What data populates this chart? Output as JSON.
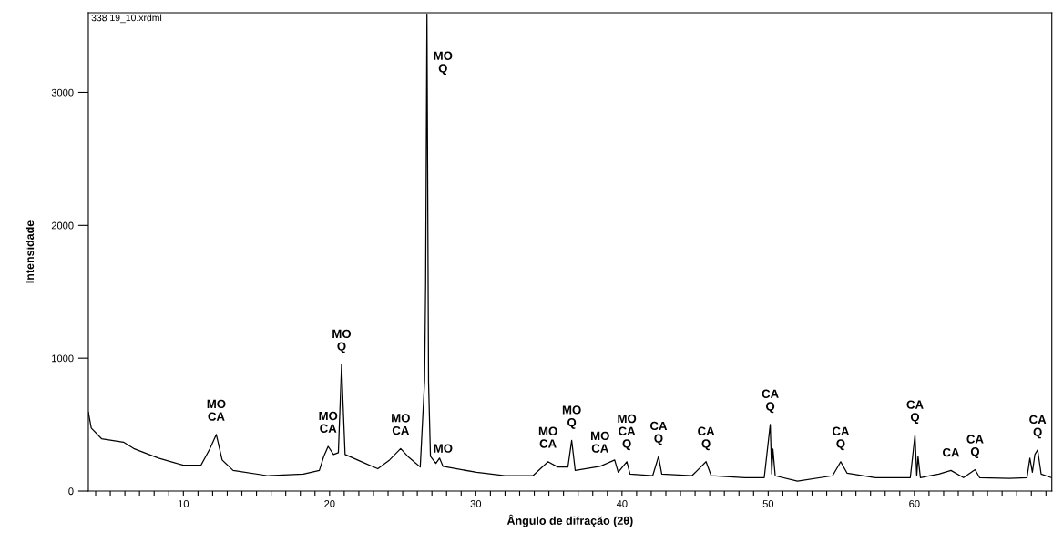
{
  "chart_data": {
    "type": "line",
    "xlabel": "Ângulo de difração (2θ)",
    "ylabel": "Intensidade",
    "xlim": [
      3.5,
      69.4
    ],
    "ylim": [
      0,
      3600
    ],
    "xticks": [
      {
        "value": 4,
        "label": null
      },
      {
        "value": 5,
        "label": null
      },
      {
        "value": 6,
        "label": null
      },
      {
        "value": 7,
        "label": null
      },
      {
        "value": 8,
        "label": null
      },
      {
        "value": 9,
        "label": null
      },
      10,
      {
        "value": 11,
        "label": null
      },
      {
        "value": 12,
        "label": null
      },
      {
        "value": 13,
        "label": null
      },
      {
        "value": 14,
        "label": null
      },
      {
        "value": 15,
        "label": null
      },
      {
        "value": 16,
        "label": null
      },
      {
        "value": 17,
        "label": null
      },
      {
        "value": 18,
        "label": null
      },
      {
        "value": 19,
        "label": null
      },
      20,
      {
        "value": 21,
        "label": null
      },
      {
        "value": 22,
        "label": null
      },
      {
        "value": 23,
        "label": null
      },
      {
        "value": 24,
        "label": null
      },
      {
        "value": 25,
        "label": null
      },
      {
        "value": 26,
        "label": null
      },
      {
        "value": 27,
        "label": null
      },
      {
        "value": 28,
        "label": null
      },
      {
        "value": 29,
        "label": null
      },
      30,
      {
        "value": 31,
        "label": null
      },
      {
        "value": 32,
        "label": null
      },
      {
        "value": 33,
        "label": null
      },
      {
        "value": 34,
        "label": null
      },
      {
        "value": 35,
        "label": null
      },
      {
        "value": 36,
        "label": null
      },
      {
        "value": 37,
        "label": null
      },
      {
        "value": 38,
        "label": null
      },
      {
        "value": 39,
        "label": null
      },
      40,
      {
        "value": 41,
        "label": null
      },
      {
        "value": 42,
        "label": null
      },
      {
        "value": 43,
        "label": null
      },
      {
        "value": 44,
        "label": null
      },
      {
        "value": 45,
        "label": null
      },
      {
        "value": 46,
        "label": null
      },
      {
        "value": 47,
        "label": null
      },
      {
        "value": 48,
        "label": null
      },
      {
        "value": 49,
        "label": null
      },
      50,
      {
        "value": 51,
        "label": null
      },
      {
        "value": 52,
        "label": null
      },
      {
        "value": 53,
        "label": null
      },
      {
        "value": 54,
        "label": null
      },
      {
        "value": 55,
        "label": null
      },
      {
        "value": 56,
        "label": null
      },
      {
        "value": 57,
        "label": null
      },
      {
        "value": 58,
        "label": null
      },
      {
        "value": 59,
        "label": null
      },
      60,
      {
        "value": 61,
        "label": null
      },
      {
        "value": 62,
        "label": null
      },
      {
        "value": 63,
        "label": null
      },
      {
        "value": 64,
        "label": null
      },
      {
        "value": 65,
        "label": null
      },
      {
        "value": 66,
        "label": null
      },
      {
        "value": 67,
        "label": null
      },
      {
        "value": 68,
        "label": null
      },
      {
        "value": 69,
        "label": null
      }
    ],
    "yticks": [
      0,
      1000,
      2000,
      3000
    ],
    "grid": false,
    "marker": "none",
    "line_style": "solid",
    "series": [
      {
        "color": "#000000",
        "x": [
          3.5,
          3.7,
          4.4,
          5.9,
          6.6,
          8.3,
          10.0,
          11.2,
          11.8,
          12.25,
          12.65,
          13.4,
          15.8,
          18.2,
          19.3,
          19.6,
          19.9,
          20.27,
          20.6,
          20.82,
          20.91,
          21.06,
          22.3,
          23.3,
          24.1,
          24.86,
          25.35,
          26.2,
          26.5,
          26.57,
          26.66,
          26.77,
          26.9,
          27.27,
          27.52,
          27.76,
          30.05,
          31.98,
          33.9,
          34.94,
          35.6,
          36.3,
          36.56,
          36.8,
          38.5,
          39.5,
          39.74,
          40.33,
          40.55,
          42.1,
          42.5,
          42.72,
          44.78,
          45.75,
          46.1,
          48.4,
          49.73,
          50.14,
          50.24,
          50.32,
          50.48,
          52.0,
          54.4,
          54.96,
          55.4,
          57.33,
          59.72,
          60.04,
          60.16,
          60.25,
          60.41,
          61.67,
          62.5,
          63.36,
          64.15,
          64.46,
          66.5,
          67.7,
          67.9,
          68.07,
          68.24,
          68.43,
          68.67,
          69.37
        ],
        "values": [
          594,
          474,
          394,
          368,
          320,
          248,
          194,
          194,
          316,
          426,
          234,
          155,
          115,
          128,
          155,
          261,
          336,
          275,
          289,
          954,
          687,
          275,
          215,
          168,
          234,
          320,
          261,
          181,
          834,
          1567,
          3591,
          820,
          261,
          208,
          248,
          186,
          141,
          115,
          115,
          221,
          181,
          181,
          381,
          155,
          186,
          234,
          141,
          221,
          128,
          115,
          261,
          128,
          115,
          221,
          115,
          101,
          101,
          502,
          128,
          316,
          115,
          75,
          115,
          221,
          134,
          101,
          101,
          421,
          115,
          261,
          101,
          128,
          155,
          101,
          161,
          101,
          96,
          101,
          248,
          141,
          275,
          309,
          128,
          101
        ]
      }
    ],
    "annotations": [
      "338 19_10.xrdml",
      {
        "text": "MO\nCA",
        "x": 12.25,
        "y": 426
      },
      {
        "text": "MO\nCA",
        "x": 19.9,
        "y": 336
      },
      {
        "text": "MO\nQ",
        "x": 20.82,
        "y": 954
      },
      {
        "text": "MO\nCA",
        "x": 24.86,
        "y": 320
      },
      {
        "text": "MO\nQ",
        "x": 26.66,
        "y": 3221
      },
      {
        "text": "MO",
        "x": 27.76,
        "y": 186
      },
      {
        "text": "MO\nCA",
        "x": 34.94,
        "y": 221
      },
      {
        "text": "MO\nQ",
        "x": 36.56,
        "y": 381
      },
      {
        "text": "MO\nCA",
        "x": 38.5,
        "y": 186
      },
      {
        "text": "MO\nCA\nQ",
        "x": 40.33,
        "y": 221
      },
      {
        "text": "CA\nQ",
        "x": 42.5,
        "y": 261
      },
      {
        "text": "CA\nQ",
        "x": 45.75,
        "y": 221
      },
      {
        "text": "CA\nQ",
        "x": 50.14,
        "y": 502
      },
      {
        "text": "CA\nQ",
        "x": 54.96,
        "y": 221
      },
      {
        "text": "CA\nQ",
        "x": 60.04,
        "y": 421
      },
      {
        "text": "CA",
        "x": 62.5,
        "y": 155
      },
      {
        "text": "CA\nQ",
        "x": 64.15,
        "y": 161
      },
      {
        "text": "CA\nQ",
        "x": 68.43,
        "y": 309
      }
    ]
  }
}
